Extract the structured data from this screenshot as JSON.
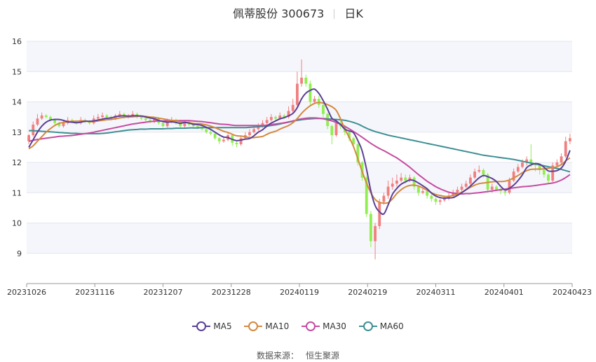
{
  "title": {
    "name": "佩蒂股份 300673",
    "period": "日K"
  },
  "source": {
    "label": "数据来源：",
    "value": "恒生聚源"
  },
  "colors": {
    "up": "#f08080",
    "down": "#90ee50",
    "ma5": "#5b3f95",
    "ma10": "#d4893f",
    "ma30": "#c64ca0",
    "ma60": "#3e8f93",
    "band": "#f5f6fb",
    "grid": "#e3e6f0"
  },
  "chart_data": {
    "type": "candlestick",
    "title": "佩蒂股份 300673",
    "subtitle": "日K",
    "ylim": [
      8,
      16
    ],
    "yticks": [
      9,
      10,
      11,
      12,
      13,
      14,
      15,
      16
    ],
    "xticks": [
      "20231026",
      "20231116",
      "20231207",
      "20231228",
      "20240119",
      "20240219",
      "20240311",
      "20240401",
      "20240423"
    ],
    "legend": [
      "MA5",
      "MA10",
      "MA30",
      "MA60"
    ],
    "legend_position": "bottom",
    "grid": true,
    "close": [
      12.9,
      13.25,
      13.45,
      13.55,
      13.5,
      13.4,
      13.3,
      13.2,
      13.3,
      13.4,
      13.35,
      13.3,
      13.4,
      13.35,
      13.3,
      13.45,
      13.5,
      13.55,
      13.5,
      13.45,
      13.55,
      13.6,
      13.5,
      13.55,
      13.6,
      13.5,
      13.45,
      13.4,
      13.35,
      13.45,
      13.3,
      13.2,
      13.35,
      13.4,
      13.3,
      13.2,
      13.35,
      13.25,
      13.2,
      13.15,
      13.1,
      13.0,
      12.95,
      12.8,
      12.7,
      12.75,
      12.9,
      12.65,
      12.6,
      12.8,
      12.9,
      13.0,
      13.1,
      13.2,
      13.3,
      13.4,
      13.5,
      13.45,
      13.55,
      13.5,
      13.7,
      13.9,
      14.6,
      14.8,
      14.6,
      14.0,
      14.1,
      13.9,
      13.6,
      13.2,
      12.9,
      13.3,
      13.2,
      13.0,
      12.8,
      12.6,
      12.0,
      11.5,
      10.3,
      9.4,
      9.9,
      10.7,
      10.9,
      11.2,
      11.3,
      11.4,
      11.5,
      11.4,
      11.5,
      11.2,
      11.0,
      11.05,
      10.9,
      10.8,
      10.7,
      10.75,
      10.8,
      10.9,
      11.0,
      11.1,
      11.2,
      11.3,
      11.5,
      11.7,
      11.75,
      11.6,
      11.1,
      11.2,
      11.1,
      11.05,
      11.0,
      11.4,
      11.7,
      11.85,
      12.0,
      12.1,
      11.95,
      11.9,
      11.75,
      11.6,
      11.4,
      11.9,
      12.0,
      12.2,
      12.7,
      12.8
    ],
    "open": [
      12.7,
      12.9,
      13.25,
      13.45,
      13.55,
      13.5,
      13.4,
      13.3,
      13.2,
      13.3,
      13.4,
      13.35,
      13.3,
      13.4,
      13.35,
      13.3,
      13.45,
      13.5,
      13.55,
      13.5,
      13.45,
      13.55,
      13.6,
      13.5,
      13.55,
      13.6,
      13.5,
      13.45,
      13.4,
      13.35,
      13.45,
      13.3,
      13.2,
      13.35,
      13.4,
      13.3,
      13.2,
      13.35,
      13.25,
      13.2,
      13.15,
      13.1,
      13.0,
      12.95,
      12.8,
      12.7,
      12.75,
      12.9,
      12.65,
      12.6,
      12.8,
      12.9,
      13.0,
      13.1,
      13.2,
      13.3,
      13.4,
      13.5,
      13.45,
      13.55,
      13.5,
      13.7,
      13.9,
      14.6,
      14.8,
      14.6,
      14.0,
      14.1,
      13.9,
      13.6,
      13.2,
      12.9,
      13.3,
      13.2,
      13.0,
      12.8,
      12.6,
      12.0,
      11.5,
      10.3,
      9.4,
      9.9,
      10.7,
      10.9,
      11.2,
      11.3,
      11.4,
      11.5,
      11.4,
      11.5,
      11.2,
      11.0,
      11.05,
      10.9,
      10.8,
      10.7,
      10.75,
      10.8,
      10.9,
      11.0,
      11.1,
      11.2,
      11.3,
      11.5,
      11.7,
      11.75,
      11.6,
      11.1,
      11.2,
      11.1,
      11.05,
      11.0,
      11.4,
      11.7,
      11.85,
      12.0,
      12.1,
      11.95,
      11.9,
      11.75,
      11.6,
      11.4,
      11.9,
      12.0,
      12.2,
      12.7
    ],
    "high": [
      12.95,
      13.35,
      13.6,
      13.65,
      13.6,
      13.55,
      13.45,
      13.35,
      13.4,
      13.5,
      13.45,
      13.4,
      13.5,
      13.45,
      13.4,
      13.55,
      13.6,
      13.65,
      13.6,
      13.55,
      13.6,
      13.7,
      13.65,
      13.6,
      13.7,
      13.65,
      13.55,
      13.5,
      13.45,
      13.5,
      13.5,
      13.35,
      13.45,
      13.5,
      13.45,
      13.35,
      13.4,
      13.4,
      13.3,
      13.25,
      13.2,
      13.15,
      13.05,
      13.0,
      12.85,
      12.85,
      13.0,
      12.95,
      12.7,
      12.9,
      13.0,
      13.1,
      13.2,
      13.3,
      13.4,
      13.5,
      13.6,
      13.55,
      13.65,
      13.6,
      13.85,
      14.1,
      15.0,
      15.4,
      14.9,
      14.7,
      14.2,
      14.2,
      13.95,
      13.65,
      13.25,
      13.4,
      13.4,
      13.25,
      13.05,
      12.85,
      12.65,
      12.05,
      11.55,
      10.4,
      10.0,
      10.8,
      11.0,
      11.4,
      11.5,
      11.6,
      11.65,
      11.6,
      11.6,
      11.55,
      11.25,
      11.15,
      11.1,
      10.95,
      10.85,
      10.8,
      10.9,
      11.0,
      11.1,
      11.2,
      11.3,
      11.4,
      11.6,
      11.8,
      11.9,
      11.8,
      11.65,
      11.3,
      11.25,
      11.15,
      11.1,
      11.5,
      11.8,
      11.95,
      12.1,
      12.2,
      12.6,
      12.0,
      11.95,
      11.8,
      11.65,
      12.0,
      12.1,
      12.3,
      12.85,
      12.95
    ],
    "low": [
      12.6,
      12.85,
      13.2,
      13.4,
      13.45,
      13.35,
      13.25,
      13.15,
      13.15,
      13.25,
      13.3,
      13.25,
      13.25,
      13.3,
      13.25,
      13.25,
      13.4,
      13.45,
      13.45,
      13.4,
      13.4,
      13.5,
      13.45,
      13.45,
      13.5,
      13.45,
      13.4,
      13.35,
      13.3,
      13.3,
      13.25,
      13.15,
      13.15,
      13.3,
      13.25,
      13.15,
      13.15,
      13.2,
      13.15,
      13.1,
      13.05,
      12.95,
      12.9,
      12.75,
      12.6,
      12.65,
      12.7,
      12.55,
      12.5,
      12.55,
      12.75,
      12.85,
      12.95,
      13.05,
      13.15,
      13.25,
      13.35,
      13.4,
      13.4,
      13.45,
      13.45,
      13.65,
      13.85,
      14.5,
      14.5,
      13.9,
      13.95,
      13.8,
      13.5,
      13.1,
      12.6,
      12.85,
      13.1,
      12.9,
      12.7,
      12.5,
      11.9,
      11.4,
      10.2,
      9.2,
      8.8,
      9.8,
      10.6,
      10.8,
      11.1,
      11.2,
      11.35,
      11.3,
      11.35,
      11.1,
      10.9,
      10.95,
      10.8,
      10.7,
      10.6,
      10.6,
      10.7,
      10.75,
      10.85,
      10.95,
      11.05,
      11.15,
      11.25,
      11.45,
      11.65,
      11.5,
      11.0,
      11.0,
      11.05,
      10.95,
      10.9,
      10.95,
      11.35,
      11.65,
      11.8,
      11.9,
      11.85,
      11.7,
      11.6,
      11.5,
      11.3,
      11.35,
      11.85,
      11.95,
      12.15,
      12.6
    ],
    "ma5": [
      12.5,
      12.75,
      13.0,
      13.2,
      13.33,
      13.4,
      13.42,
      13.42,
      13.39,
      13.34,
      13.33,
      13.31,
      13.33,
      13.36,
      13.36,
      13.37,
      13.4,
      13.43,
      13.46,
      13.47,
      13.51,
      13.53,
      13.54,
      13.53,
      13.54,
      13.54,
      13.53,
      13.5,
      13.47,
      13.44,
      13.39,
      13.35,
      13.33,
      13.34,
      13.32,
      13.29,
      13.32,
      13.3,
      13.26,
      13.25,
      13.22,
      13.16,
      13.09,
      13.0,
      12.91,
      12.84,
      12.82,
      12.76,
      12.72,
      12.74,
      12.77,
      12.79,
      12.88,
      13.0,
      13.08,
      13.2,
      13.3,
      13.37,
      13.44,
      13.48,
      13.54,
      13.62,
      13.81,
      14.1,
      14.29,
      14.38,
      14.42,
      14.28,
      14.04,
      13.76,
      13.46,
      13.37,
      13.25,
      13.1,
      13.04,
      12.98,
      12.72,
      12.38,
      11.78,
      11.06,
      10.57,
      10.37,
      10.3,
      10.6,
      10.95,
      11.14,
      11.28,
      11.36,
      11.42,
      11.4,
      11.32,
      11.23,
      11.13,
      10.99,
      10.89,
      10.84,
      10.82,
      10.83,
      10.84,
      10.91,
      11.0,
      11.1,
      11.22,
      11.36,
      11.49,
      11.57,
      11.53,
      11.47,
      11.37,
      11.21,
      11.09,
      11.15,
      11.25,
      11.4,
      11.59,
      11.83,
      11.92,
      11.96,
      11.94,
      11.84,
      11.72,
      11.71,
      11.73,
      11.82,
      12.04,
      12.4
    ],
    "ma10": [
      12.45,
      12.55,
      12.7,
      12.85,
      13.0,
      13.12,
      13.22,
      13.29,
      13.32,
      13.34,
      13.36,
      13.36,
      13.37,
      13.37,
      13.35,
      13.35,
      13.37,
      13.39,
      13.41,
      13.42,
      13.44,
      13.47,
      13.49,
      13.5,
      13.51,
      13.52,
      13.53,
      13.52,
      13.5,
      13.49,
      13.46,
      13.44,
      13.41,
      13.39,
      13.38,
      13.34,
      13.33,
      13.31,
      13.29,
      13.28,
      13.27,
      13.24,
      13.2,
      13.15,
      13.09,
      13.03,
      12.99,
      12.93,
      12.88,
      12.87,
      12.85,
      12.82,
      12.82,
      12.84,
      12.86,
      12.93,
      12.99,
      13.03,
      13.1,
      13.16,
      13.22,
      13.31,
      13.45,
      13.62,
      13.76,
      13.87,
      13.95,
      13.98,
      13.96,
      13.91,
      13.84,
      13.72,
      13.44,
      13.1,
      12.83,
      12.52,
      12.12,
      11.7,
      11.32,
      11.0,
      10.78,
      10.68,
      10.66,
      10.67,
      10.8,
      10.97,
      11.1,
      11.19,
      11.24,
      11.25,
      11.22,
      11.16,
      11.08,
      11.0,
      10.94,
      10.91,
      10.88,
      10.88,
      10.91,
      10.95,
      11.02,
      11.1,
      11.18,
      11.25,
      11.3,
      11.32,
      11.34,
      11.36,
      11.37,
      11.37,
      11.38,
      11.42,
      11.49,
      11.57,
      11.66,
      11.73,
      11.77,
      11.78,
      11.78,
      11.79,
      11.81,
      11.83,
      11.86,
      11.93,
      12.05,
      12.15
    ],
    "ma30": [
      12.7,
      12.73,
      12.76,
      12.78,
      12.8,
      12.82,
      12.84,
      12.86,
      12.87,
      12.88,
      12.89,
      12.91,
      12.93,
      12.95,
      12.97,
      13.0,
      13.03,
      13.06,
      13.09,
      13.12,
      13.15,
      13.18,
      13.21,
      13.24,
      13.27,
      13.29,
      13.31,
      13.33,
      13.35,
      13.36,
      13.37,
      13.37,
      13.38,
      13.38,
      13.38,
      13.38,
      13.38,
      13.38,
      13.37,
      13.36,
      13.35,
      13.33,
      13.31,
      13.29,
      13.27,
      13.26,
      13.25,
      13.23,
      13.22,
      13.22,
      13.22,
      13.22,
      13.22,
      13.22,
      13.22,
      13.23,
      13.25,
      13.27,
      13.29,
      13.31,
      13.34,
      13.37,
      13.41,
      13.44,
      13.46,
      13.47,
      13.47,
      13.46,
      13.44,
      13.41,
      13.37,
      13.32,
      13.26,
      13.19,
      13.11,
      13.02,
      12.93,
      12.83,
      12.73,
      12.63,
      12.54,
      12.46,
      12.39,
      12.31,
      12.23,
      12.15,
      12.05,
      11.95,
      11.84,
      11.72,
      11.6,
      11.49,
      11.38,
      11.29,
      11.2,
      11.13,
      11.07,
      11.02,
      10.99,
      10.97,
      10.96,
      10.97,
      10.97,
      10.99,
      11.0,
      11.02,
      11.04,
      11.06,
      11.08,
      11.1,
      11.12,
      11.14,
      11.16,
      11.18,
      11.2,
      11.21,
      11.22,
      11.24,
      11.26,
      11.28,
      11.3,
      11.32,
      11.36,
      11.42,
      11.5,
      11.6
    ],
    "ma60": [
      13.05,
      13.05,
      13.04,
      13.03,
      13.02,
      13.01,
      13.0,
      12.99,
      12.98,
      12.97,
      12.96,
      12.96,
      12.95,
      12.95,
      12.95,
      12.95,
      12.95,
      12.96,
      12.97,
      12.99,
      13.01,
      13.03,
      13.05,
      13.07,
      13.08,
      13.09,
      13.1,
      13.1,
      13.11,
      13.11,
      13.11,
      13.11,
      13.12,
      13.12,
      13.13,
      13.13,
      13.13,
      13.14,
      13.14,
      13.14,
      13.15,
      13.15,
      13.15,
      13.15,
      13.15,
      13.15,
      13.15,
      13.15,
      13.15,
      13.15,
      13.15,
      13.16,
      13.17,
      13.18,
      13.19,
      13.2,
      13.22,
      13.24,
      13.27,
      13.3,
      13.33,
      13.36,
      13.39,
      13.41,
      13.43,
      13.44,
      13.45,
      13.45,
      13.45,
      13.44,
      13.43,
      13.42,
      13.41,
      13.39,
      13.36,
      13.32,
      13.27,
      13.2,
      13.13,
      13.07,
      13.02,
      12.98,
      12.94,
      12.9,
      12.87,
      12.84,
      12.81,
      12.78,
      12.75,
      12.72,
      12.69,
      12.66,
      12.63,
      12.6,
      12.57,
      12.54,
      12.51,
      12.48,
      12.45,
      12.42,
      12.39,
      12.36,
      12.33,
      12.3,
      12.27,
      12.24,
      12.22,
      12.2,
      12.18,
      12.16,
      12.14,
      12.12,
      12.1,
      12.07,
      12.04,
      12.01,
      11.98,
      11.95,
      11.92,
      11.89,
      11.86,
      11.83,
      11.8,
      11.77,
      11.73,
      11.69
    ]
  },
  "legend": [
    {
      "label": "MA5",
      "color": "#5b3f95"
    },
    {
      "label": "MA10",
      "color": "#d4893f"
    },
    {
      "label": "MA30",
      "color": "#c64ca0"
    },
    {
      "label": "MA60",
      "color": "#3e8f93"
    }
  ]
}
